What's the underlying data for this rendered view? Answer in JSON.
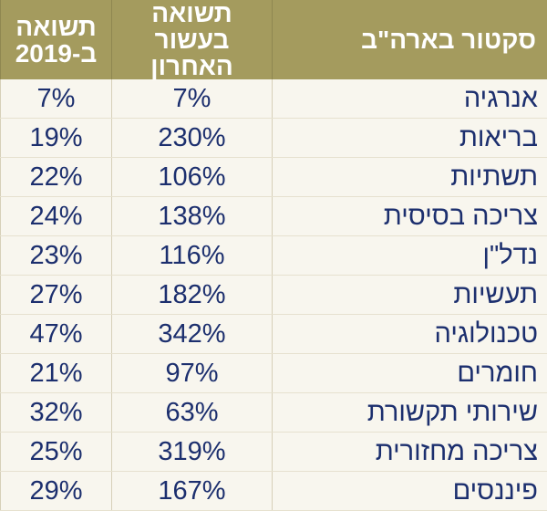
{
  "headers": [
    "סקטור בארה\"ב",
    "תשואה בעשור האחרון",
    "תשואה ב-2019"
  ],
  "rows": [
    [
      "אנרגיה",
      "7%",
      "7%"
    ],
    [
      "בריאות",
      "230%",
      "19%"
    ],
    [
      "תשתיות",
      "106%",
      "22%"
    ],
    [
      "צריכה בסיסית",
      "138%",
      "24%"
    ],
    [
      "נדל\"ן",
      "116%",
      "23%"
    ],
    [
      "תעשיות",
      "182%",
      "27%"
    ],
    [
      "טכנולוגיה",
      "342%",
      "47%"
    ],
    [
      "חומרים",
      "97%",
      "21%"
    ],
    [
      "שירותי תקשורת",
      "63%",
      "32%"
    ],
    [
      "צריכה מחזורית",
      "319%",
      "25%"
    ],
    [
      "פיננסים",
      "167%",
      "29%"
    ]
  ],
  "colors": {
    "header_bg": "#a49b5e",
    "row_bg": "#f8f6ee",
    "text": "#1c2f6e"
  }
}
